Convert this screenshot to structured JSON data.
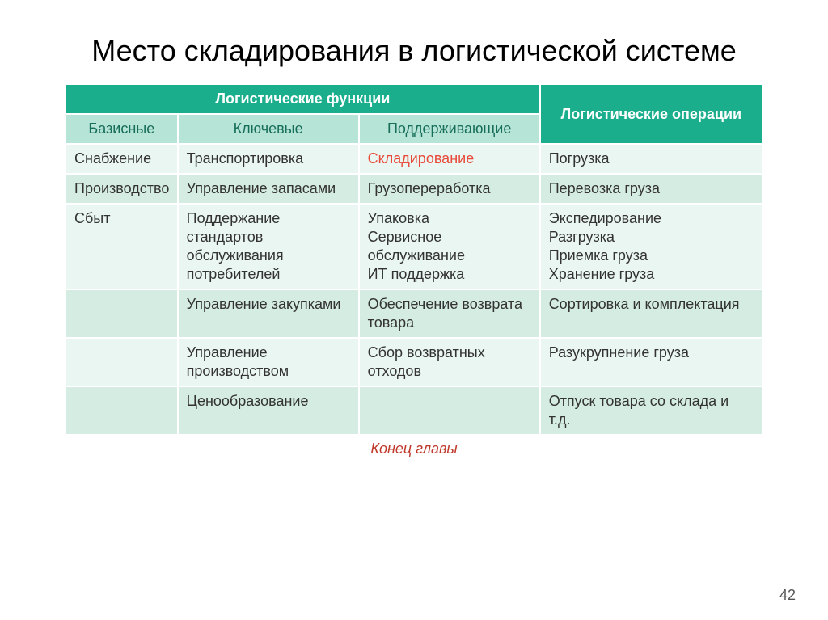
{
  "title": "Место складирования в логистической системе",
  "colors": {
    "header_main_bg": "#1aae8d",
    "header_main_fg": "#ffffff",
    "header_sub_bg": "#b6e4d7",
    "header_sub_fg": "#166e59",
    "row_even_bg": "#eaf6f2",
    "row_odd_bg": "#d5ece3",
    "cell_fg": "#333333",
    "highlight_fg": "#e84a3a",
    "footer_fg": "#c0392b"
  },
  "table": {
    "header_main_left": "Логистические функции",
    "header_main_right": "Логистические операции",
    "sub_headers": [
      "Базисные",
      "Ключевые",
      "Поддерживающие"
    ],
    "rows": [
      {
        "c0": "Снабжение",
        "c1": "Транспортировка",
        "c2": "Складирование",
        "c2_highlight": true,
        "c3": "Погрузка"
      },
      {
        "c0": "Производство",
        "c1": "Управление запасами",
        "c2": "Грузопереработка",
        "c3": "Перевозка груза"
      },
      {
        "c0": "Сбыт",
        "c1": "Поддержание стандартов обслуживания потребителей",
        "c2": "Упаковка\nСервисное обслуживание\nИТ поддержка",
        "c3": "Экспедирование\nРазгрузка\nПриемка груза\nХранение груза"
      },
      {
        "c0": "",
        "c1": "Управление закупками",
        "c2": "Обеспечение возврата товара",
        "c3": "Сортировка и комплектация"
      },
      {
        "c0": "",
        "c1": "Управление производством",
        "c2": "Сбор возвратных отходов",
        "c3": "Разукрупнение груза"
      },
      {
        "c0": "",
        "c1": "Ценообразование",
        "c2": "",
        "c3": "Отпуск товара со склада и т.д."
      }
    ]
  },
  "footer": "Конец главы",
  "page_number": "42"
}
